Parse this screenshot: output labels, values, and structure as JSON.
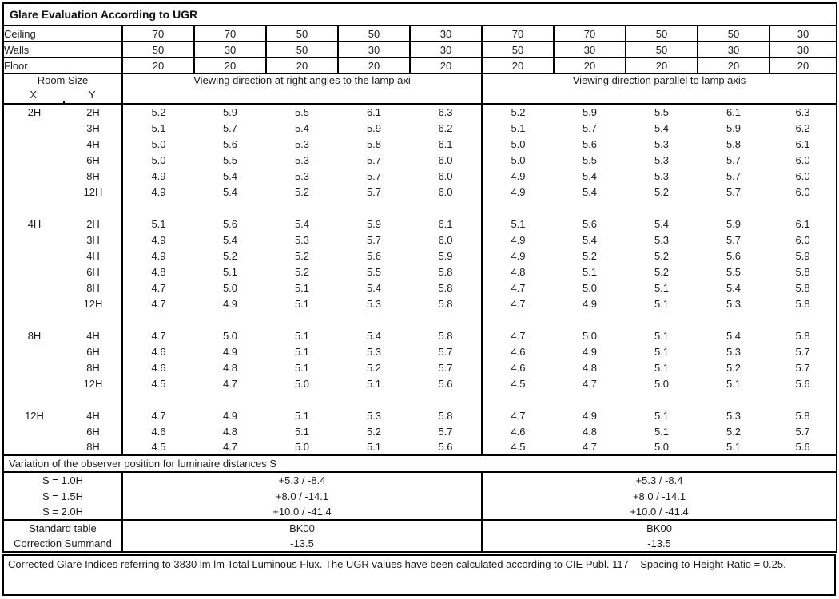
{
  "title": "Glare Evaluation According to UGR",
  "surfaces": {
    "rows": [
      {
        "label": "Ceiling",
        "values": [
          "70",
          "70",
          "50",
          "50",
          "30",
          "70",
          "70",
          "50",
          "50",
          "30"
        ]
      },
      {
        "label": "Walls",
        "values": [
          "50",
          "30",
          "50",
          "30",
          "30",
          "50",
          "30",
          "50",
          "30",
          "30"
        ]
      },
      {
        "label": "Floor",
        "values": [
          "20",
          "20",
          "20",
          "20",
          "20",
          "20",
          "20",
          "20",
          "20",
          "20"
        ]
      }
    ]
  },
  "header": {
    "room_size": "Room Size",
    "x_label": "X",
    "y_label": "Y",
    "section_left": "Viewing direction at right angles to the lamp axi",
    "section_right": "Viewing direction parallel to lamp axis"
  },
  "ugr_blocks": [
    {
      "x": "2H",
      "rows": [
        {
          "y": "2H",
          "ra": [
            "5.2",
            "5.9",
            "5.5",
            "6.1",
            "6.3"
          ],
          "par": [
            "5.2",
            "5.9",
            "5.5",
            "6.1",
            "6.3"
          ]
        },
        {
          "y": "3H",
          "ra": [
            "5.1",
            "5.7",
            "5.4",
            "5.9",
            "6.2"
          ],
          "par": [
            "5.1",
            "5.7",
            "5.4",
            "5.9",
            "6.2"
          ]
        },
        {
          "y": "4H",
          "ra": [
            "5.0",
            "5.6",
            "5.3",
            "5.8",
            "6.1"
          ],
          "par": [
            "5.0",
            "5.6",
            "5.3",
            "5.8",
            "6.1"
          ]
        },
        {
          "y": "6H",
          "ra": [
            "5.0",
            "5.5",
            "5.3",
            "5.7",
            "6.0"
          ],
          "par": [
            "5.0",
            "5.5",
            "5.3",
            "5.7",
            "6.0"
          ]
        },
        {
          "y": "8H",
          "ra": [
            "4.9",
            "5.4",
            "5.3",
            "5.7",
            "6.0"
          ],
          "par": [
            "4.9",
            "5.4",
            "5.3",
            "5.7",
            "6.0"
          ]
        },
        {
          "y": "12H",
          "ra": [
            "4.9",
            "5.4",
            "5.2",
            "5.7",
            "6.0"
          ],
          "par": [
            "4.9",
            "5.4",
            "5.2",
            "5.7",
            "6.0"
          ]
        }
      ]
    },
    {
      "x": "4H",
      "rows": [
        {
          "y": "2H",
          "ra": [
            "5.1",
            "5.6",
            "5.4",
            "5.9",
            "6.1"
          ],
          "par": [
            "5.1",
            "5.6",
            "5.4",
            "5.9",
            "6.1"
          ]
        },
        {
          "y": "3H",
          "ra": [
            "4.9",
            "5.4",
            "5.3",
            "5.7",
            "6.0"
          ],
          "par": [
            "4.9",
            "5.4",
            "5.3",
            "5.7",
            "6.0"
          ]
        },
        {
          "y": "4H",
          "ra": [
            "4.9",
            "5.2",
            "5.2",
            "5.6",
            "5.9"
          ],
          "par": [
            "4.9",
            "5.2",
            "5.2",
            "5.6",
            "5.9"
          ]
        },
        {
          "y": "6H",
          "ra": [
            "4.8",
            "5.1",
            "5.2",
            "5.5",
            "5.8"
          ],
          "par": [
            "4.8",
            "5.1",
            "5.2",
            "5.5",
            "5.8"
          ]
        },
        {
          "y": "8H",
          "ra": [
            "4.7",
            "5.0",
            "5.1",
            "5.4",
            "5.8"
          ],
          "par": [
            "4.7",
            "5.0",
            "5.1",
            "5.4",
            "5.8"
          ]
        },
        {
          "y": "12H",
          "ra": [
            "4.7",
            "4.9",
            "5.1",
            "5.3",
            "5.8"
          ],
          "par": [
            "4.7",
            "4.9",
            "5.1",
            "5.3",
            "5.8"
          ]
        }
      ]
    },
    {
      "x": "8H",
      "rows": [
        {
          "y": "4H",
          "ra": [
            "4.7",
            "5.0",
            "5.1",
            "5.4",
            "5.8"
          ],
          "par": [
            "4.7",
            "5.0",
            "5.1",
            "5.4",
            "5.8"
          ]
        },
        {
          "y": "6H",
          "ra": [
            "4.6",
            "4.9",
            "5.1",
            "5.3",
            "5.7"
          ],
          "par": [
            "4.6",
            "4.9",
            "5.1",
            "5.3",
            "5.7"
          ]
        },
        {
          "y": "8H",
          "ra": [
            "4.6",
            "4.8",
            "5.1",
            "5.2",
            "5.7"
          ],
          "par": [
            "4.6",
            "4.8",
            "5.1",
            "5.2",
            "5.7"
          ]
        },
        {
          "y": "12H",
          "ra": [
            "4.5",
            "4.7",
            "5.0",
            "5.1",
            "5.6"
          ],
          "par": [
            "4.5",
            "4.7",
            "5.0",
            "5.1",
            "5.6"
          ]
        }
      ]
    },
    {
      "x": "12H",
      "rows": [
        {
          "y": "4H",
          "ra": [
            "4.7",
            "4.9",
            "5.1",
            "5.3",
            "5.8"
          ],
          "par": [
            "4.7",
            "4.9",
            "5.1",
            "5.3",
            "5.8"
          ]
        },
        {
          "y": "6H",
          "ra": [
            "4.6",
            "4.8",
            "5.1",
            "5.2",
            "5.7"
          ],
          "par": [
            "4.6",
            "4.8",
            "5.1",
            "5.2",
            "5.7"
          ]
        },
        {
          "y": "8H",
          "ra": [
            "4.5",
            "4.7",
            "5.0",
            "5.1",
            "5.6"
          ],
          "par": [
            "4.5",
            "4.7",
            "5.0",
            "5.1",
            "5.6"
          ]
        }
      ]
    }
  ],
  "variation": {
    "heading": "Variation of the observer position for luminaire distances S",
    "rows": [
      {
        "label": "S = 1.0H",
        "left": "+5.3 / -8.4",
        "right": "+5.3 / -8.4"
      },
      {
        "label": "S = 1.5H",
        "left": "+8.0 / -14.1",
        "right": "+8.0 / -14.1"
      },
      {
        "label": "S = 2.0H",
        "left": "+10.0 / -41.4",
        "right": "+10.0 / -41.4"
      }
    ]
  },
  "summary": {
    "rows": [
      {
        "label": "Standard table",
        "left": "BK00",
        "right": "BK00"
      },
      {
        "label": "Correction Summand",
        "left": "-13.5",
        "right": "-13.5"
      }
    ]
  },
  "footer": "Corrected Glare Indices referring to 3830 lm lm Total Luminous Flux. The UGR values have been calculated according to CIE Publ. 117    Spacing-to-Height-Ratio = 0.25."
}
